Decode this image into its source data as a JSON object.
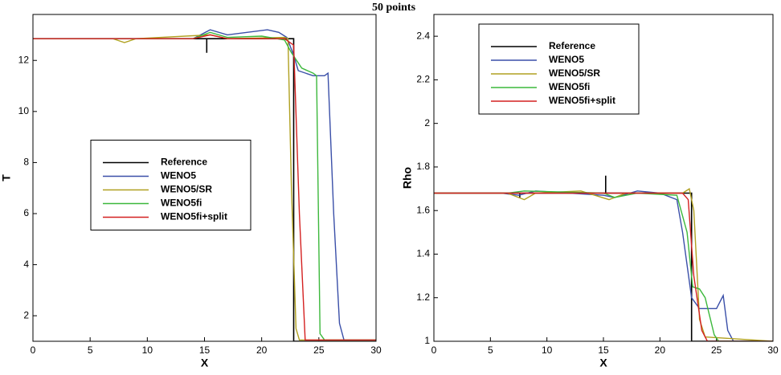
{
  "title": "50 points",
  "chart_data": [
    {
      "type": "line",
      "xlabel": "X",
      "ylabel": "T",
      "xlim": [
        0,
        30
      ],
      "ylim": [
        1,
        13.8
      ],
      "xticks": [
        0,
        5,
        10,
        15,
        20,
        25,
        30
      ],
      "yticks": [
        2,
        4,
        6,
        8,
        10,
        12
      ],
      "legend": "center left",
      "series": [
        {
          "name": "Reference",
          "color": "#000000",
          "x": [
            0,
            15.2,
            15.2,
            15.2,
            22.8,
            22.8,
            30
          ],
          "values": [
            12.85,
            12.85,
            12.3,
            12.85,
            12.85,
            1.0,
            1.0
          ]
        },
        {
          "name": "WENO5",
          "color": "#3a4fa8",
          "x": [
            0,
            14,
            15.5,
            17,
            20.5,
            21.5,
            22.2,
            22.8,
            23.2,
            24.5,
            25.5,
            25.8,
            26.3,
            26.8,
            27.2,
            30
          ],
          "values": [
            12.85,
            12.85,
            13.2,
            13.0,
            13.2,
            13.1,
            12.9,
            12.2,
            11.6,
            11.4,
            11.4,
            11.5,
            6,
            1.7,
            1.05,
            1.05
          ]
        },
        {
          "name": "WENO5/SR",
          "color": "#b0a020",
          "x": [
            0,
            7,
            8,
            9,
            15.5,
            17,
            22,
            22.3,
            22.6,
            23.0,
            23.3,
            30
          ],
          "values": [
            12.85,
            12.85,
            12.7,
            12.85,
            13.0,
            12.85,
            12.9,
            12.85,
            7,
            1.5,
            1.05,
            1.05
          ]
        },
        {
          "name": "WENO5fi",
          "color": "#3cb83c",
          "x": [
            0,
            14,
            15.5,
            17,
            20,
            22,
            22.6,
            23.5,
            24.5,
            24.8,
            25.1,
            25.5,
            30
          ],
          "values": [
            12.85,
            12.85,
            13.1,
            12.9,
            12.95,
            12.8,
            12.3,
            11.7,
            11.5,
            11.4,
            1.3,
            1.05,
            1.05
          ]
        },
        {
          "name": "WENO5fi+split",
          "color": "#d42020",
          "x": [
            0,
            14,
            15.5,
            17,
            22,
            22.8,
            23.3,
            23.8,
            30
          ],
          "values": [
            12.85,
            12.85,
            13.0,
            12.85,
            12.85,
            12.6,
            6,
            1.05,
            1.05
          ]
        }
      ]
    },
    {
      "type": "line",
      "xlabel": "X",
      "ylabel": "Rho",
      "xlim": [
        0,
        30
      ],
      "ylim": [
        1,
        2.5
      ],
      "xticks": [
        0,
        5,
        10,
        15,
        20,
        25,
        30
      ],
      "yticks": [
        1,
        1.2,
        1.4,
        1.6,
        1.8,
        2,
        2.2,
        2.4
      ],
      "legend": "upper left",
      "series": [
        {
          "name": "Reference",
          "color": "#000000",
          "x": [
            0,
            7.6,
            7.6,
            7.6,
            15.2,
            15.2,
            15.2,
            22.8,
            22.8,
            30
          ],
          "values": [
            1.68,
            1.68,
            1.66,
            1.68,
            1.68,
            1.76,
            1.68,
            1.68,
            1.0,
            1.0
          ]
        },
        {
          "name": "WENO5",
          "color": "#3a4fa8",
          "x": [
            0,
            6,
            7.5,
            9,
            12,
            15,
            16,
            18,
            20,
            21.5,
            22,
            22.8,
            23.5,
            25,
            25.6,
            26,
            26.5,
            30
          ],
          "values": [
            1.68,
            1.68,
            1.67,
            1.69,
            1.68,
            1.67,
            1.66,
            1.69,
            1.68,
            1.65,
            1.5,
            1.2,
            1.15,
            1.15,
            1.21,
            1.05,
            1.0,
            1.0
          ]
        },
        {
          "name": "WENO5/SR",
          "color": "#b0a020",
          "x": [
            0,
            6.5,
            8,
            9,
            13,
            15.5,
            17,
            22,
            22.6,
            23,
            23.5,
            24,
            30
          ],
          "values": [
            1.68,
            1.68,
            1.65,
            1.68,
            1.69,
            1.65,
            1.68,
            1.68,
            1.7,
            1.6,
            1.1,
            1.02,
            1.0
          ]
        },
        {
          "name": "WENO5fi",
          "color": "#3cb83c",
          "x": [
            0,
            6.5,
            8,
            15,
            16,
            18,
            21.5,
            22.4,
            22.9,
            23.5,
            24,
            24.8,
            25.2,
            30
          ],
          "values": [
            1.68,
            1.68,
            1.69,
            1.68,
            1.66,
            1.68,
            1.67,
            1.5,
            1.25,
            1.24,
            1.2,
            1.03,
            1.0,
            1.0
          ]
        },
        {
          "name": "WENO5fi+split",
          "color": "#d42020",
          "x": [
            0,
            22,
            22.5,
            23,
            23.7,
            24.2,
            30
          ],
          "values": [
            1.68,
            1.68,
            1.65,
            1.3,
            1.05,
            1.0,
            1.0
          ]
        }
      ]
    }
  ]
}
